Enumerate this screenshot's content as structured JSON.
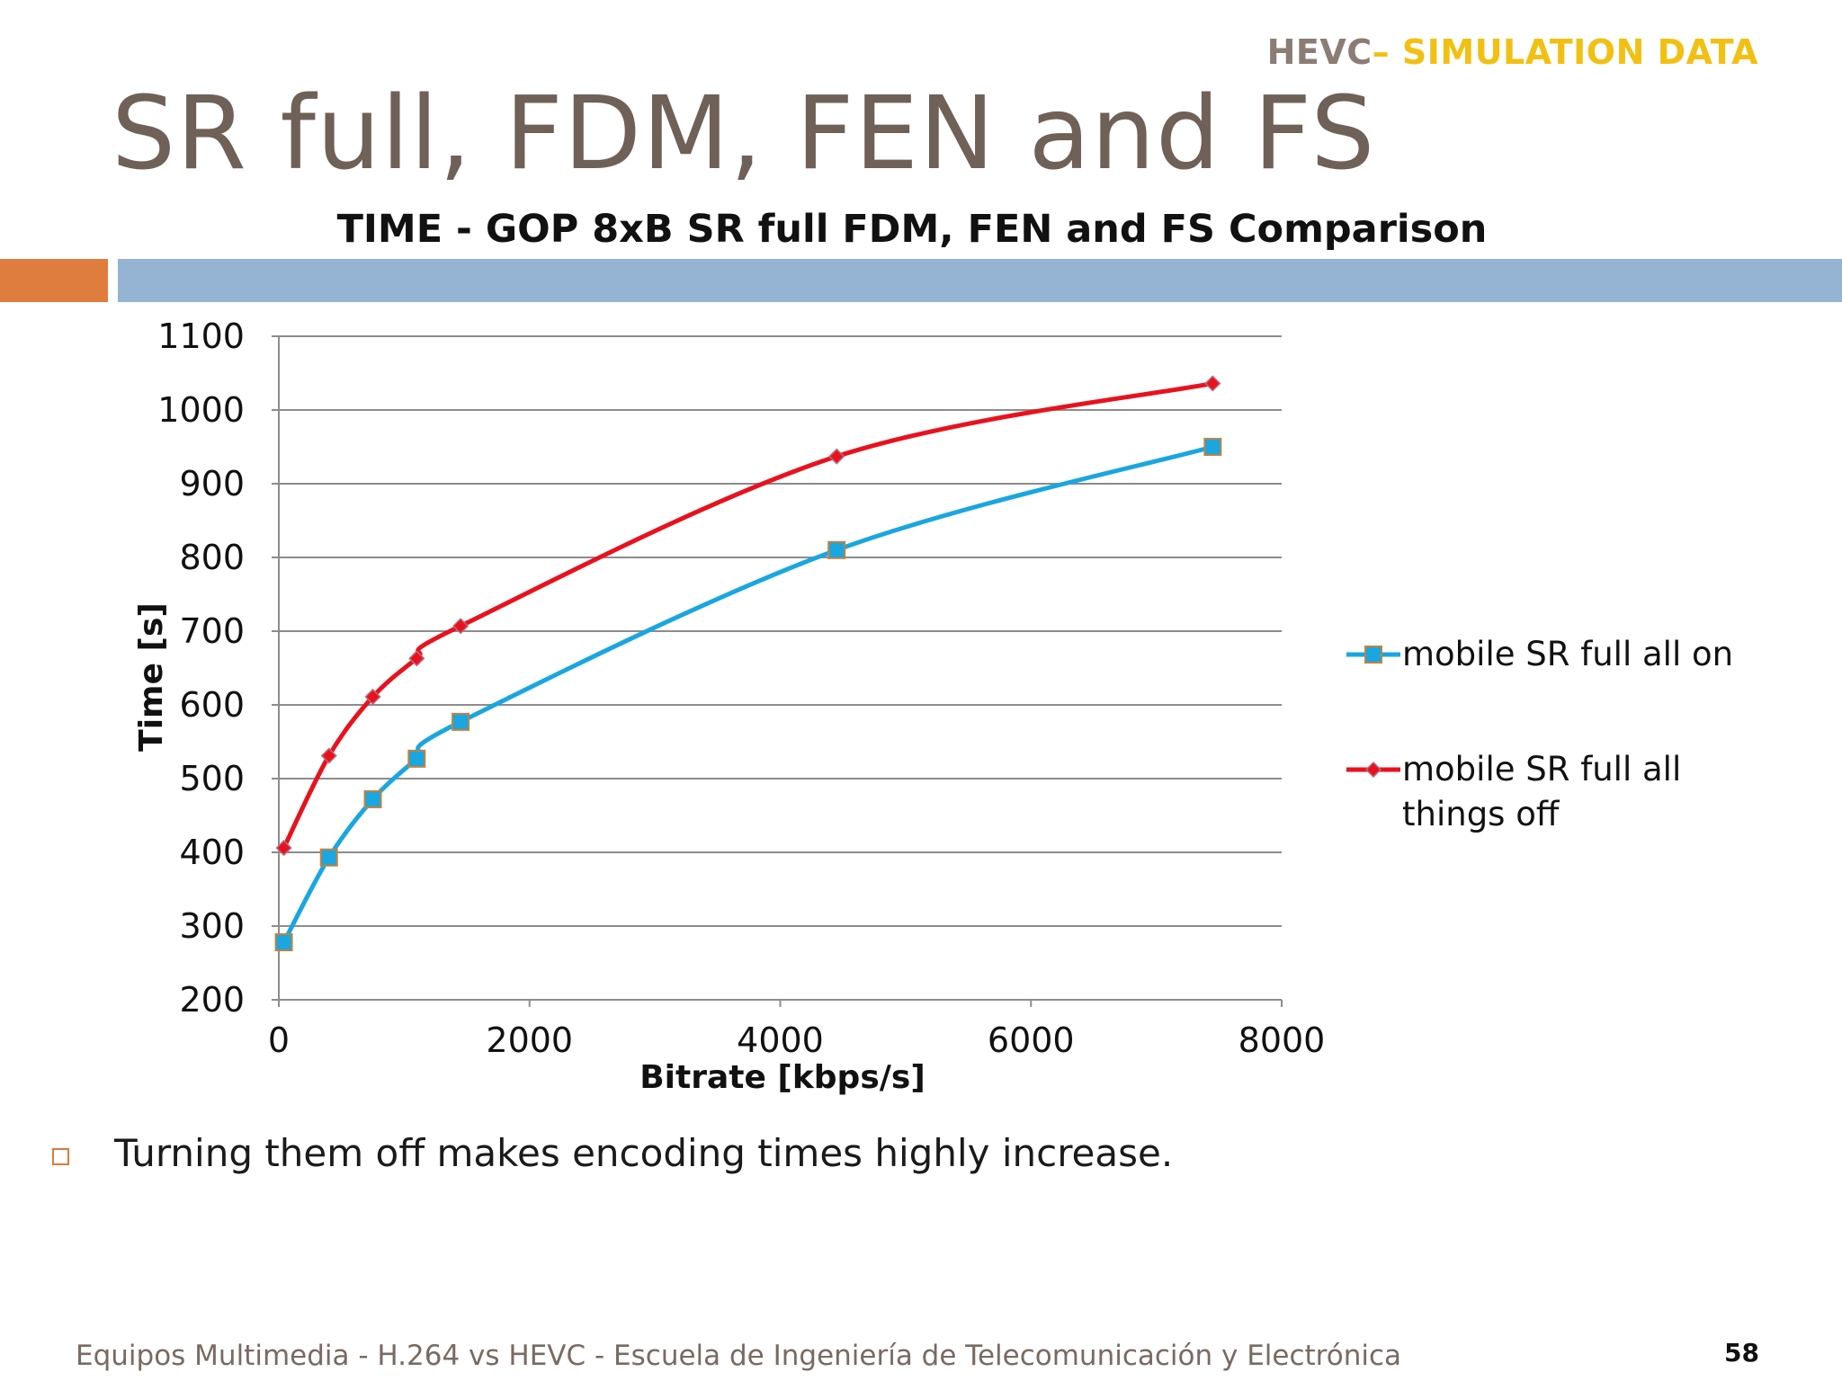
{
  "slide": {
    "tag_prefix": "HEVC",
    "tag_suffix": "– SIMULATION DATA",
    "title": "SR full, FDM, FEN and FS",
    "bullet": "Turning them off makes encoding times highly increase.",
    "footer": "Equipos Multimedia - H.264 vs HEVC - Escuela de Ingeniería de Telecomunicación y Electrónica",
    "page_number": "58",
    "colors": {
      "orange_bar": "#df7d3e",
      "blue_bar": "#95b4d3",
      "title": "#6f6058",
      "tag_gray": "#8b7d74",
      "tag_yellow": "#f2c013"
    }
  },
  "chart_data": {
    "type": "line",
    "title": "TIME - GOP 8xB SR full FDM, FEN and FS Comparison",
    "xlabel": "Bitrate [kbps/s]",
    "ylabel": "Time [s]",
    "xlim": [
      0,
      8000
    ],
    "ylim": [
      200,
      1100
    ],
    "xticks": [
      0,
      2000,
      4000,
      6000,
      8000
    ],
    "yticks": [
      200,
      300,
      400,
      500,
      600,
      700,
      800,
      900,
      1000,
      1100
    ],
    "grid": "horizontal",
    "legend_position": "right",
    "series": [
      {
        "name": "mobile SR full all on",
        "color": "#1aa6e0",
        "marker": "square",
        "points": [
          [
            40,
            278
          ],
          [
            400,
            393
          ],
          [
            750,
            472
          ],
          [
            1100,
            527
          ],
          [
            1450,
            577
          ],
          [
            4450,
            810
          ],
          [
            7450,
            950
          ]
        ]
      },
      {
        "name": "mobile SR full all things off",
        "color": "#e8121e",
        "marker": "diamond",
        "points": [
          [
            40,
            406
          ],
          [
            400,
            531
          ],
          [
            750,
            611
          ],
          [
            1100,
            663
          ],
          [
            1450,
            707
          ],
          [
            4450,
            937
          ],
          [
            7450,
            1036
          ]
        ]
      }
    ]
  }
}
